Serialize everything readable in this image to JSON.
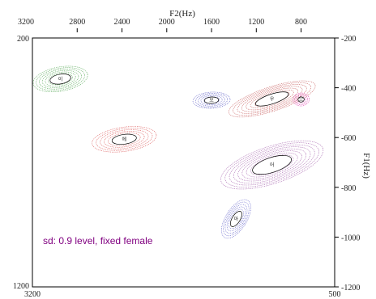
{
  "chart_data": {
    "type": "scatter",
    "title": "",
    "xlabel": "F2(Hz)",
    "ylabel": "F1(Hz)",
    "x_axis": {
      "direction": "reversed",
      "domain": [
        3200,
        500
      ],
      "ticks": [
        2800,
        2400,
        2000,
        1600,
        1200,
        800
      ],
      "top_end_label": "3200",
      "bottom_left_label": "3200",
      "bottom_right_label": "500"
    },
    "y_axis": {
      "direction": "downward",
      "domain": [
        200,
        1200
      ],
      "ticks": [
        -200,
        -400,
        -600,
        -800,
        -1000,
        -1200
      ],
      "top_left_label": "200",
      "bottom_left_label": "1200"
    },
    "grid": false,
    "annotation": "sd: 0.9 level, fixed female",
    "series": [
      {
        "label": "이",
        "f2": 2950,
        "f1": 365,
        "color": "#5aaa5a"
      },
      {
        "label": "에",
        "f2": 2380,
        "f1": 607,
        "color": "#dd6060"
      },
      {
        "label": "오",
        "f2": 1600,
        "f1": 450,
        "color": "#6464c8"
      },
      {
        "label": "우",
        "f2": 1060,
        "f1": 445,
        "color": "#c86060"
      },
      {
        "label": "으",
        "f2": 800,
        "f1": 447,
        "color": "#e040b0"
      },
      {
        "label": "어",
        "f2": 1060,
        "f1": 710,
        "color": "#a868b0"
      },
      {
        "label": "아",
        "f2": 1380,
        "f1": 927,
        "color": "#6a6acc"
      }
    ]
  }
}
